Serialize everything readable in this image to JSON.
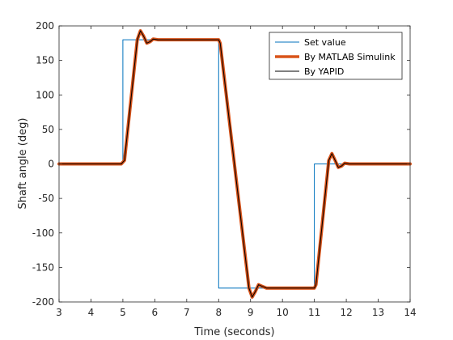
{
  "chart_data": {
    "type": "line",
    "title": "",
    "xlabel": "Time (seconds)",
    "ylabel": "Shaft angle (deg)",
    "xlim": [
      3,
      14
    ],
    "ylim": [
      -200,
      200
    ],
    "xticks": [
      3,
      4,
      5,
      6,
      7,
      8,
      9,
      10,
      11,
      12,
      13,
      14
    ],
    "yticks": [
      -200,
      -150,
      -100,
      -50,
      0,
      50,
      100,
      150,
      200
    ],
    "grid": false,
    "legend_position": "top-right",
    "series": [
      {
        "name": "Set value",
        "color": "#0072BD",
        "style": "step",
        "x": [
          3,
          5,
          5,
          8,
          8,
          11,
          11,
          14
        ],
        "y": [
          0,
          0,
          180,
          180,
          -180,
          -180,
          0,
          0
        ]
      },
      {
        "name": "By MATLAB Simulink",
        "color": "#D95319",
        "style": "thick",
        "x": [
          3,
          4.95,
          5.05,
          5.45,
          5.55,
          5.65,
          5.75,
          5.85,
          5.95,
          6.1,
          8.0,
          8.05,
          8.95,
          9.05,
          9.15,
          9.25,
          9.35,
          9.5,
          11.0,
          11.05,
          11.45,
          11.55,
          11.65,
          11.75,
          11.85,
          11.95,
          12.1,
          14
        ],
        "y": [
          0,
          0,
          5,
          180,
          193,
          185,
          175,
          177,
          181,
          180,
          180,
          175,
          -180,
          -193,
          -185,
          -175,
          -177,
          -180,
          -180,
          -175,
          5,
          15,
          5,
          -5,
          -3,
          1,
          0,
          0
        ]
      },
      {
        "name": "By YAPID",
        "color": "#000000",
        "style": "thin",
        "x": [
          3,
          4.95,
          5.05,
          5.45,
          5.55,
          5.65,
          5.75,
          5.85,
          5.95,
          6.1,
          8.0,
          8.05,
          8.95,
          9.05,
          9.15,
          9.25,
          9.35,
          9.5,
          11.0,
          11.05,
          11.45,
          11.55,
          11.65,
          11.75,
          11.85,
          11.95,
          12.1,
          14
        ],
        "y": [
          0,
          0,
          5,
          180,
          193,
          185,
          175,
          177,
          181,
          180,
          180,
          175,
          -180,
          -193,
          -185,
          -175,
          -177,
          -180,
          -180,
          -175,
          5,
          15,
          5,
          -5,
          -3,
          1,
          0,
          0
        ]
      }
    ]
  }
}
